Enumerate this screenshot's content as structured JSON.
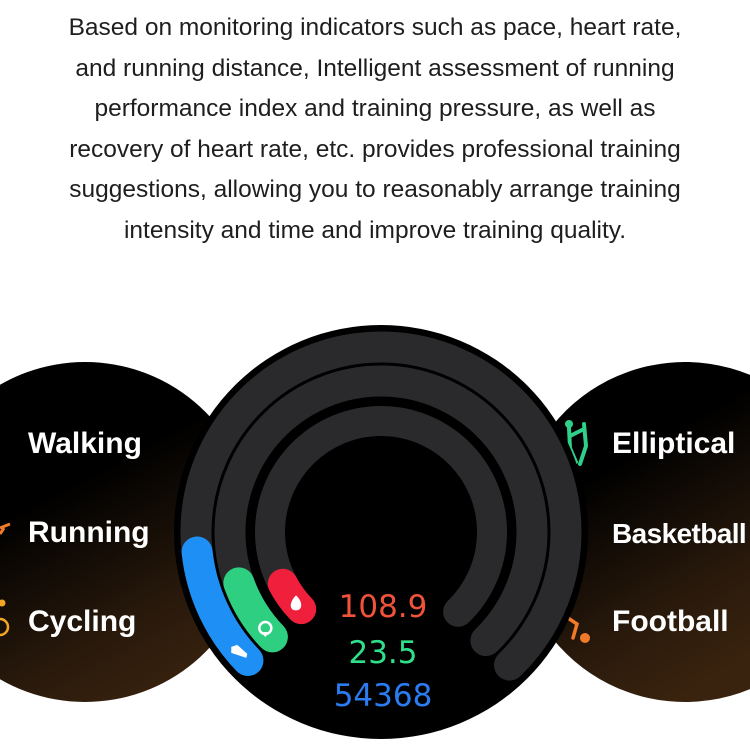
{
  "description": {
    "lines": [
      "Based on monitoring indicators such as pace, heart rate,",
      "and running distance, Intelligent assessment of running",
      "performance index and training pressure, as well as",
      "recovery of heart rate, etc. provides professional training",
      "suggestions, allowing you to reasonably arrange training",
      "intensity and time and improve training quality."
    ]
  },
  "left_panel": {
    "items": [
      {
        "label": "Walking",
        "icon": "walking-icon"
      },
      {
        "label": "Running",
        "icon": "running-icon",
        "icon_color": "#f07a2a"
      },
      {
        "label": "Cycling",
        "icon": "cycling-icon",
        "icon_color": "#f2a623"
      }
    ]
  },
  "right_panel": {
    "items": [
      {
        "label": "Elliptical",
        "icon": "elliptical-icon",
        "icon_color": "#2fd08a"
      },
      {
        "label": "Basketball",
        "icon": "basketball-icon"
      },
      {
        "label": "Football",
        "icon": "football-icon",
        "icon_color": "#f07a2a"
      }
    ]
  },
  "watch": {
    "rings": [
      {
        "name": "steps",
        "icon": "shoe-icon",
        "color": "#1e90f5",
        "progress": 0.14
      },
      {
        "name": "distance",
        "icon": "location-icon",
        "color": "#2ecf80",
        "progress": 0.09
      },
      {
        "name": "calories",
        "icon": "flame-icon",
        "color": "#f0203c",
        "progress": 0.06
      }
    ],
    "values": {
      "calories": "108.9",
      "distance": "23.5",
      "steps": "54368"
    },
    "colors": {
      "calories": "#f0523a",
      "distance": "#2ee08a",
      "steps": "#2a7cf0",
      "track": "#2a2a2c"
    }
  }
}
